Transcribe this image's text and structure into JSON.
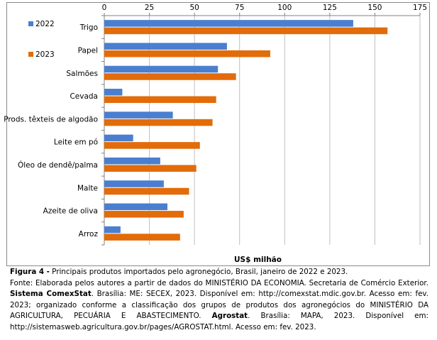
{
  "chart_data": {
    "type": "bar",
    "orientation": "horizontal",
    "categories": [
      "Trigo",
      "Papel",
      "Salmões",
      "Cevada",
      "Prods. têxteis de algodão",
      "Leite em pó",
      "Óleo de dendê/palma",
      "Malte",
      "Azeite de oliva",
      "Arroz"
    ],
    "series": [
      {
        "name": "2022",
        "color": "#4a7fd0",
        "values": [
          138,
          68,
          63,
          10,
          38,
          16,
          31,
          33,
          35,
          9
        ]
      },
      {
        "name": "2023",
        "color": "#e26b0a",
        "values": [
          157,
          92,
          73,
          62,
          60,
          53,
          51,
          47,
          44,
          42
        ]
      }
    ],
    "xlabel": "US$ milhão",
    "xlim": [
      0,
      175
    ],
    "xticks": [
      0,
      25,
      50,
      75,
      100,
      125,
      150,
      175
    ],
    "axis_position": "top",
    "grid": true,
    "legend_placement": "top-left"
  },
  "caption": {
    "figure_label": "Figura 4 -",
    "figure_title": " Principais produtos importados pelo agronegócio, Brasil, janeiro de 2022 e 2023.",
    "source_1": "Fonte: Elaborada pelos autores a partir de dados do MINISTÉRIO DA ECONOMIA. Secretaria de Comércio Exterior. ",
    "source_bold_1": "Sistema ComexStat",
    "source_2": ". Brasília: ME: SECEX, 2023. Disponível em: http://comexstat.mdic.gov.br. Acesso em: fev. 2023; organizado conforme a classificação dos grupos de produtos dos agronegócios do MINISTÉRIO DA AGRICULTURA, PECUÁRIA E ABASTECIMENTO. ",
    "source_bold_2": "Agrostat",
    "source_3": ". Brasília: MAPA, 2023. Disponível em: http://sistemasweb.agricultura.gov.br/pages/AGROSTAT.html. Acesso em: fev. 2023."
  }
}
